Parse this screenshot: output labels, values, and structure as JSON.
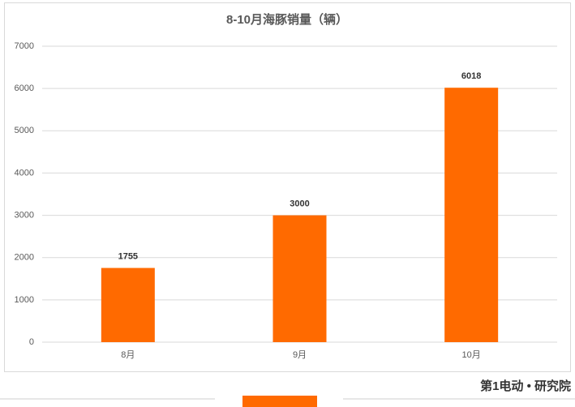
{
  "chart_data": {
    "type": "bar",
    "title": "8-10月海豚销量（辆）",
    "categories": [
      "8月",
      "9月",
      "10月"
    ],
    "values": [
      1755,
      3000,
      6018
    ],
    "color": "#ff6a00",
    "ylim": [
      0,
      7000
    ],
    "yticks": [
      0,
      1000,
      2000,
      3000,
      4000,
      5000,
      6000,
      7000
    ],
    "grid": true,
    "data_labels": true,
    "brand": "第1电动 • 研究院"
  }
}
